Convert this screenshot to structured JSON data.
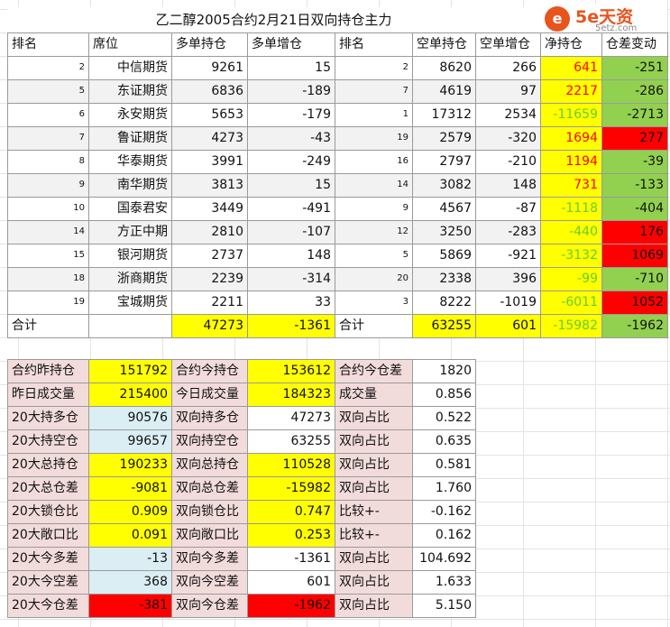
{
  "header": {
    "title": "乙二醇2005合约2月21日双向持仓主力",
    "logo_name": "5e天资",
    "logo_url": "5etz.com"
  },
  "main_table": {
    "columns": [
      "排名",
      "席位",
      "多单持仓",
      "多单增仓",
      "排名",
      "空单持仓",
      "空单增仓",
      "净持仓",
      "仓差变动"
    ],
    "rows": [
      [
        "2",
        "中信期货",
        "9261",
        "15",
        "2",
        "8620",
        "266",
        "641",
        "-251"
      ],
      [
        "5",
        "东证期货",
        "6836",
        "-189",
        "7",
        "4619",
        "97",
        "2217",
        "-286"
      ],
      [
        "6",
        "永安期货",
        "5653",
        "-179",
        "1",
        "17312",
        "2534",
        "-11659",
        "-2713"
      ],
      [
        "7",
        "鲁证期货",
        "4273",
        "-43",
        "19",
        "2579",
        "-320",
        "1694",
        "277"
      ],
      [
        "8",
        "华泰期货",
        "3991",
        "-249",
        "16",
        "2797",
        "-210",
        "1194",
        "-39"
      ],
      [
        "9",
        "南华期货",
        "3813",
        "15",
        "14",
        "3082",
        "148",
        "731",
        "-133"
      ],
      [
        "10",
        "国泰君安",
        "3449",
        "-491",
        "9",
        "4567",
        "-87",
        "-1118",
        "-404"
      ],
      [
        "14",
        "方正中期",
        "2810",
        "-107",
        "12",
        "3250",
        "-283",
        "-440",
        "176"
      ],
      [
        "15",
        "银河期货",
        "2737",
        "148",
        "5",
        "5869",
        "-921",
        "-3132",
        "1069"
      ],
      [
        "18",
        "浙商期货",
        "2239",
        "-314",
        "20",
        "2338",
        "396",
        "-99",
        "-710"
      ],
      [
        "19",
        "宝城期货",
        "2211",
        "33",
        "3",
        "8222",
        "-1019",
        "-6011",
        "1052"
      ]
    ],
    "total": [
      "合计",
      "47273",
      "-1361",
      "合计",
      "63255",
      "601",
      "-15982",
      "-1962"
    ]
  },
  "summary_table": {
    "rows": [
      [
        "合约昨持仓",
        "151792",
        "合约今持仓",
        "153612",
        "合约今仓差",
        "1820"
      ],
      [
        "昨日成交量",
        "215400",
        "今日成交量",
        "184323",
        "成交量",
        "0.856"
      ],
      [
        "20大持多仓",
        "90576",
        "双向持多仓",
        "47273",
        "双向占比",
        "0.522"
      ],
      [
        "20大持空仓",
        "99657",
        "双向持空仓",
        "63255",
        "双向占比",
        "0.635"
      ],
      [
        "20大总持仓",
        "190233",
        "双向总持仓",
        "110528",
        "双向占比",
        "0.581"
      ],
      [
        "20大总仓差",
        "-9081",
        "双向总仓差",
        "-15982",
        "双向占比",
        "1.760"
      ],
      [
        "20大锁仓比",
        "0.909",
        "双向锁仓比",
        "0.747",
        "比较+-",
        "-0.162"
      ],
      [
        "20大敞口比",
        "0.091",
        "双向敞口比",
        "0.253",
        "比较+-",
        "0.162"
      ],
      [
        "20大今多差",
        "-13",
        "双向今多差",
        "-1361",
        "双向占比",
        "104.692"
      ],
      [
        "20大今空差",
        "368",
        "双向今空差",
        "601",
        "双向占比",
        "1.633"
      ],
      [
        "20大今仓差",
        "-381",
        "双向今仓差",
        "-1962",
        "双向占比",
        "5.150"
      ]
    ]
  }
}
